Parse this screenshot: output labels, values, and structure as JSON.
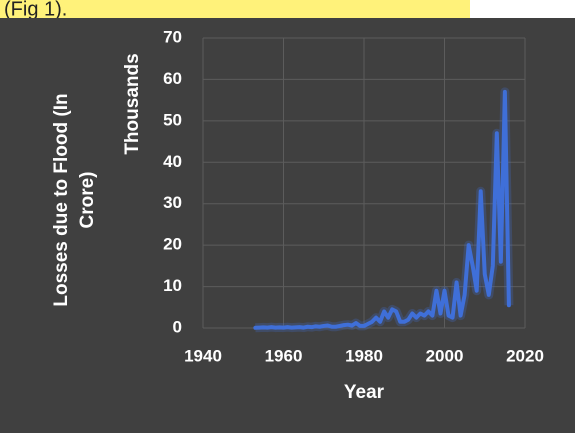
{
  "caption": "(Fig 1).",
  "chart_data": {
    "type": "line",
    "y_label_lines": [
      "Losses due to Flood (In",
      "Crore)"
    ],
    "y_unit_label": "Thousands",
    "x_label": "Year",
    "x": [
      1953,
      1954,
      1955,
      1956,
      1957,
      1958,
      1959,
      1960,
      1961,
      1962,
      1963,
      1964,
      1965,
      1966,
      1967,
      1968,
      1969,
      1970,
      1971,
      1972,
      1973,
      1974,
      1975,
      1976,
      1977,
      1978,
      1979,
      1980,
      1981,
      1982,
      1983,
      1984,
      1985,
      1986,
      1987,
      1988,
      1989,
      1990,
      1991,
      1992,
      1993,
      1994,
      1995,
      1996,
      1997,
      1998,
      1999,
      2000,
      2001,
      2002,
      2003,
      2004,
      2005,
      2006,
      2007,
      2008,
      2009,
      2010,
      2011,
      2012,
      2013,
      2014,
      2015,
      2016
    ],
    "series": [
      {
        "name": "Losses",
        "color": "#3f6fd8",
        "values": [
          0.05,
          0.1,
          0.15,
          0.1,
          0.2,
          0.1,
          0.15,
          0.1,
          0.2,
          0.1,
          0.15,
          0.2,
          0.1,
          0.3,
          0.2,
          0.4,
          0.3,
          0.5,
          0.6,
          0.3,
          0.3,
          0.5,
          0.7,
          0.8,
          0.6,
          1.2,
          0.5,
          0.5,
          1.0,
          1.5,
          2.5,
          1.5,
          4,
          2.5,
          4.5,
          4,
          1.5,
          1.5,
          2,
          3.5,
          2.5,
          3.5,
          3,
          4,
          3,
          9,
          3.5,
          9,
          3,
          2.5,
          11,
          3,
          8,
          20,
          15,
          9,
          33,
          13,
          8,
          15,
          47,
          16,
          57,
          5.5
        ]
      }
    ],
    "xlim": [
      1940,
      2020
    ],
    "xticks": [
      1940,
      1960,
      1980,
      2000,
      2020
    ],
    "ylim": [
      0,
      70
    ],
    "yticks": [
      0,
      10,
      20,
      30,
      40,
      50,
      60,
      70
    ],
    "grid": true
  }
}
